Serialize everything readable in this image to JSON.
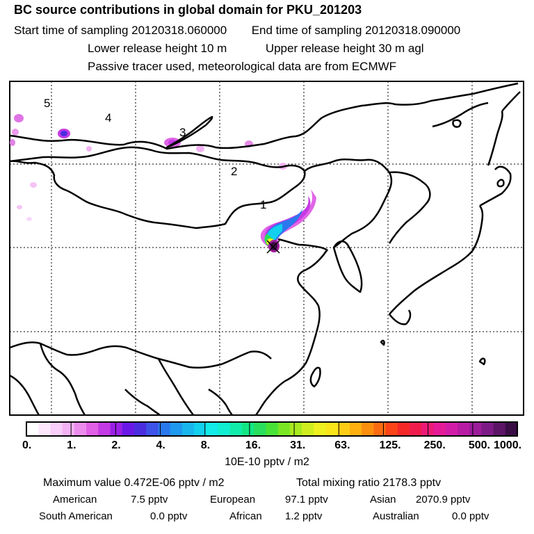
{
  "header": {
    "title": "BC  source contributions in global domain for PKU_201203",
    "start_sampling": "Start time of sampling 20120318.060000",
    "end_sampling": "End time of sampling 20120318.090000",
    "lower_release": "Lower release height   10 m",
    "upper_release": "Upper release height   30 m    agl",
    "tracer_note": "Passive tracer used, meteorological data are from ECMWF"
  },
  "map": {
    "region_labels": [
      "5",
      "4",
      "3",
      "2",
      "1"
    ],
    "marker": "receptor-cross"
  },
  "legend": {
    "tick_labels": [
      "0.",
      "1.",
      "2.",
      "4.",
      "8.",
      "16.",
      "31.",
      "63.",
      "125.",
      "250.",
      "500.",
      "1000."
    ],
    "unit": "10E-10 pptv / m2",
    "colors": [
      "#ffffff",
      "#fde8fd",
      "#f9cff9",
      "#f3b2f3",
      "#ec8cec",
      "#e060e6",
      "#c43ae4",
      "#9a20e6",
      "#6a18e8",
      "#4b2de0",
      "#3d52e8",
      "#2a78ee",
      "#1f98ef",
      "#19b6ee",
      "#12d0ee",
      "#12ebe8",
      "#12eed0",
      "#12ecaa",
      "#12e684",
      "#28de5c",
      "#48e236",
      "#78e623",
      "#a8ea1f",
      "#d0ee1f",
      "#eef01f",
      "#fae41a",
      "#fdcc14",
      "#fdb010",
      "#fc900e",
      "#fb6c12",
      "#fa4418",
      "#f52828",
      "#f01c4c",
      "#ec1a76",
      "#e61a98",
      "#d21ca8",
      "#b81ca4",
      "#9c1c9a",
      "#7e1a86",
      "#5c1466",
      "#3a0c44"
    ]
  },
  "footer": {
    "maximum_value": "Maximum value  0.472E-06 pptv / m2",
    "total_mixing": "Total mixing ratio     2178.3 pptv",
    "american_label": "American",
    "american_value": "7.5 pptv",
    "european_label": "European",
    "european_value": "97.1 pptv",
    "asian_label": "Asian",
    "asian_value": "2070.9 pptv",
    "south_american_label": "South American",
    "south_american_value": "0.0 pptv",
    "african_label": "African",
    "african_value": "1.2 pptv",
    "australian_label": "Australian",
    "australian_value": "0.0 pptv"
  }
}
